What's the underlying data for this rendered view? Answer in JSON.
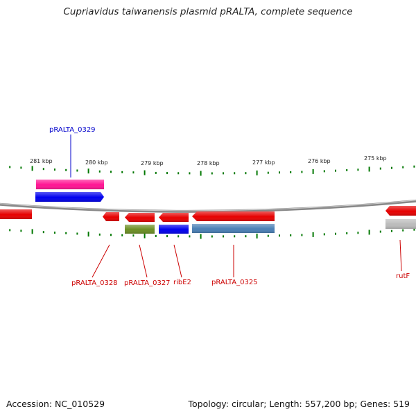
{
  "title": "Cupriavidus taiwanensis plasmid pRALTA, complete sequence",
  "footer": {
    "accession": "Accession: NC_010529",
    "topology": "Topology: circular; Length: 557,200 bp; Genes: 519"
  },
  "colors": {
    "cds": "#e60000",
    "gene": "#ff1493",
    "blue": "#0000ee",
    "olive": "#6b8e23",
    "steelblue": "#4a7fb5",
    "gray": "#bbbbbb",
    "tick": "#007700",
    "backbone": "#888888",
    "label_red": "#cc0000",
    "label_blue": "#0000cc"
  },
  "kbp_labels": [
    "281 kbp",
    "280 kbp",
    "279 kbp",
    "278 kbp",
    "277 kbp",
    "276 kbp",
    "275 kbp"
  ],
  "gene_labels": [
    {
      "text": "pRALTA_0329",
      "color": "blue"
    },
    {
      "text": "pRALTA_0328",
      "color": "red"
    },
    {
      "text": "pRALTA_0327",
      "color": "red"
    },
    {
      "text": "ribE2",
      "color": "red"
    },
    {
      "text": "pRALTA_0325",
      "color": "red"
    },
    {
      "text": "rutF",
      "color": "red"
    }
  ]
}
